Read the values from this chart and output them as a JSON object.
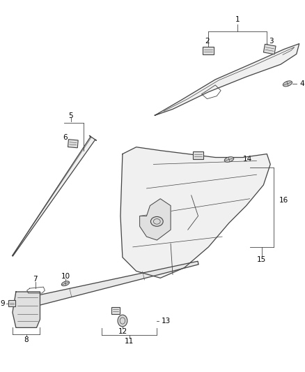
{
  "background_color": "#ffffff",
  "fig_width": 4.38,
  "fig_height": 5.33,
  "dpi": 100,
  "line_color": "#444444",
  "label_fontsize": 7.5,
  "lw_main": 0.9,
  "lw_thin": 0.6
}
